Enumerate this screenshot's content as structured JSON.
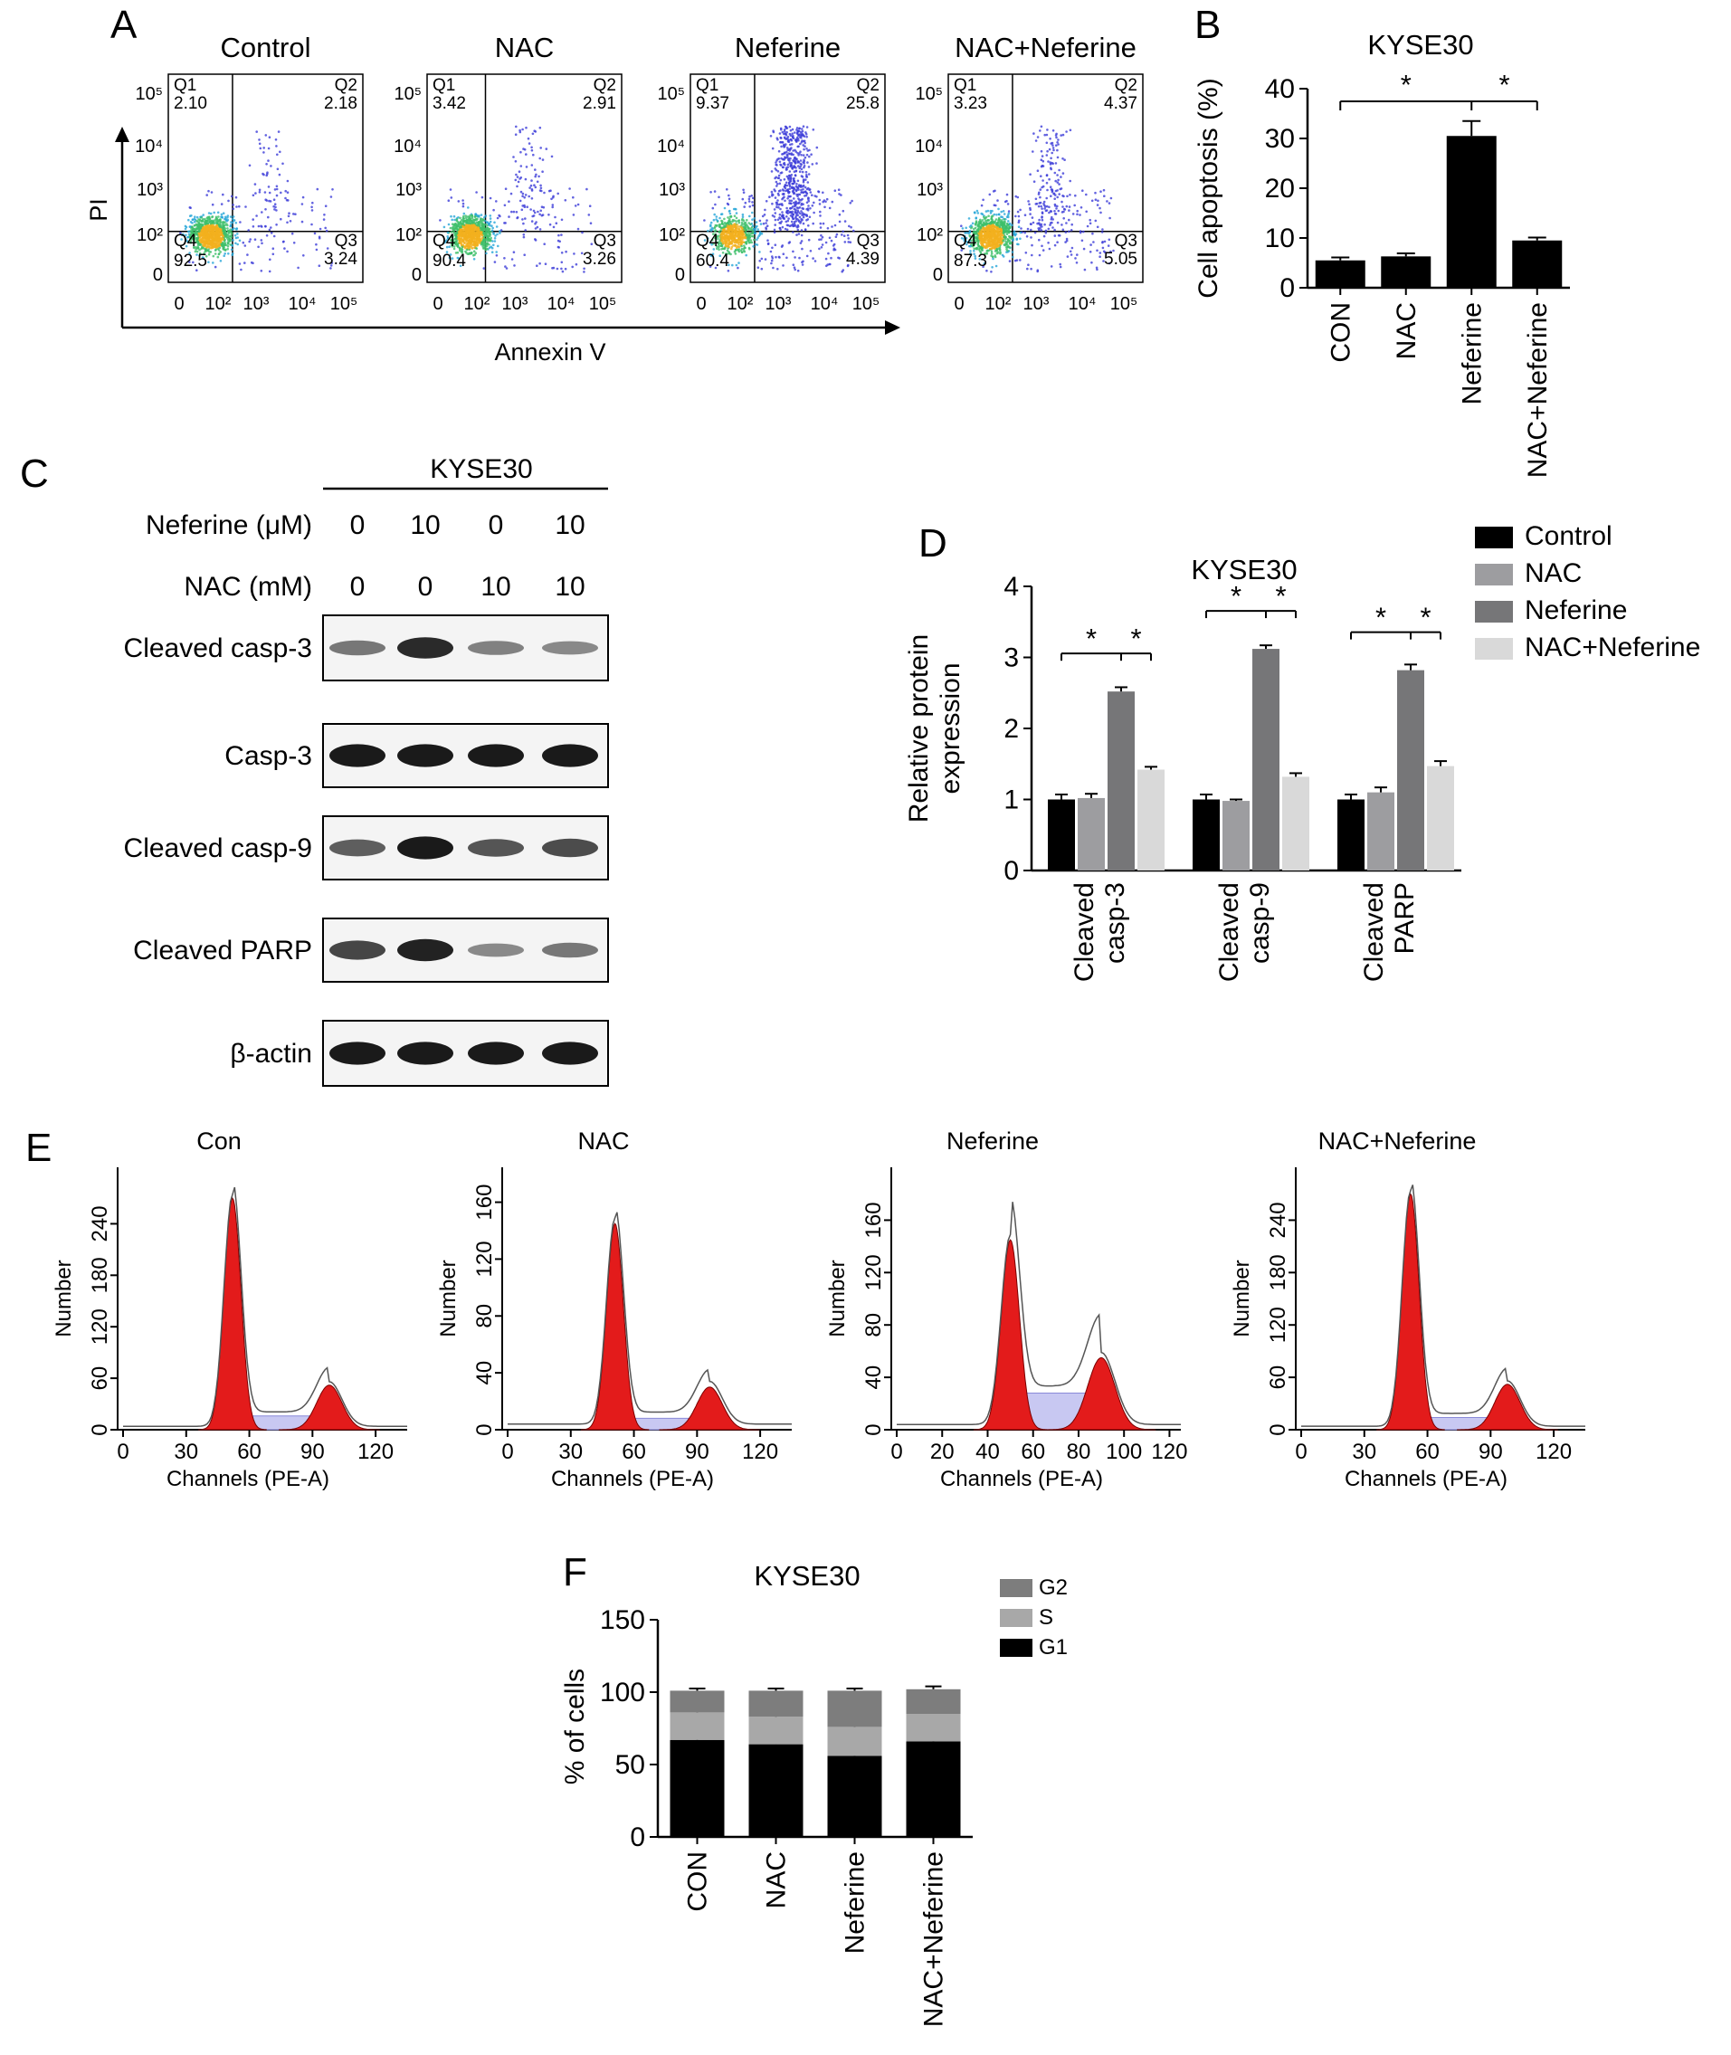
{
  "panels": {
    "A": {
      "letter": "A",
      "ylabel": "PI",
      "xlabel": "Annexin V",
      "ticks_x": [
        "0",
        "10²",
        "10³",
        "10⁴",
        "10⁵"
      ],
      "ticks_y": [
        "10⁵",
        "10⁴",
        "10³",
        "10²",
        "0"
      ],
      "plots": [
        {
          "title": "Control",
          "q1": [
            "Q1",
            "2.10"
          ],
          "q2": [
            "Q2",
            "2.18"
          ],
          "q3": [
            "Q3",
            "3.24"
          ],
          "q4": [
            "Q4",
            "92.5"
          ]
        },
        {
          "title": "NAC",
          "q1": [
            "Q1",
            "3.42"
          ],
          "q2": [
            "Q2",
            "2.91"
          ],
          "q3": [
            "Q3",
            "3.26"
          ],
          "q4": [
            "Q4",
            "90.4"
          ]
        },
        {
          "title": "Neferine",
          "q1": [
            "Q1",
            "9.37"
          ],
          "q2": [
            "Q2",
            "25.8"
          ],
          "q3": [
            "Q3",
            "4.39"
          ],
          "q4": [
            "Q4",
            "60.4"
          ]
        },
        {
          "title": "NAC+Neferine",
          "q1": [
            "Q1",
            "3.23"
          ],
          "q2": [
            "Q2",
            "4.37"
          ],
          "q3": [
            "Q3",
            "5.05"
          ],
          "q4": [
            "Q4",
            "87.3"
          ]
        }
      ]
    },
    "B": {
      "letter": "B",
      "sig": "*"
    },
    "C": {
      "letter": "C",
      "title": "KYSE30",
      "treat_rows": [
        {
          "label": "Neferine (μM)",
          "values": [
            "0",
            "10",
            "0",
            "10"
          ]
        },
        {
          "label": "NAC (mM)",
          "values": [
            "0",
            "0",
            "10",
            "10"
          ]
        }
      ],
      "blots": [
        {
          "label": "Cleaved casp-3",
          "intensity": [
            0.4,
            0.85,
            0.35,
            0.3
          ]
        },
        {
          "label": "Casp-3",
          "intensity": [
            0.95,
            0.95,
            0.95,
            0.95
          ]
        },
        {
          "label": "Cleaved casp-9",
          "intensity": [
            0.55,
            0.95,
            0.6,
            0.65
          ]
        },
        {
          "label": "Cleaved PARP",
          "intensity": [
            0.7,
            0.9,
            0.3,
            0.4
          ]
        },
        {
          "label": "β-actin",
          "intensity": [
            0.95,
            0.95,
            0.95,
            0.95
          ]
        }
      ]
    },
    "D": {
      "letter": "D",
      "sig": "*"
    },
    "E": {
      "letter": "E"
    },
    "F": {
      "letter": "F"
    }
  },
  "chart_data": [
    {
      "id": "B",
      "type": "bar",
      "title": "KYSE30",
      "ylabel": "Cell apoptosis (%)",
      "categories": [
        "CON",
        "NAC",
        "Neferine",
        "NAC+Neferine"
      ],
      "values": [
        5.5,
        6.3,
        30.5,
        9.5
      ],
      "errors": [
        0.6,
        0.6,
        3.0,
        0.6
      ],
      "ylim": [
        0,
        40
      ],
      "yticks": [
        0,
        10,
        20,
        30,
        40
      ],
      "color": "#000000"
    },
    {
      "id": "D",
      "type": "bar",
      "title": "KYSE30",
      "ylabel": "Relative protein expression",
      "categories": [
        "Cleaved casp-3",
        "Cleaved casp-9",
        "Cleaved PARP"
      ],
      "series": [
        {
          "name": "Control",
          "values": [
            1.0,
            1.0,
            1.0
          ],
          "errors": [
            0.07,
            0.07,
            0.07
          ],
          "color": "#000000"
        },
        {
          "name": "NAC",
          "values": [
            1.02,
            0.98,
            1.1
          ],
          "errors": [
            0.06,
            0.02,
            0.07
          ],
          "color": "#9d9da0"
        },
        {
          "name": "Neferine",
          "values": [
            2.52,
            3.12,
            2.82
          ],
          "errors": [
            0.06,
            0.05,
            0.08
          ],
          "color": "#767678"
        },
        {
          "name": "NAC+Neferine",
          "values": [
            1.42,
            1.32,
            1.47
          ],
          "errors": [
            0.04,
            0.05,
            0.07
          ],
          "color": "#d9d9d9"
        }
      ],
      "ylim": [
        0,
        4
      ],
      "yticks": [
        0,
        1,
        2,
        3,
        4
      ],
      "legend": "top-right"
    },
    {
      "id": "E",
      "type": "area",
      "xlabel": "Channels (PE-A)",
      "ylabel": "Number",
      "plots": [
        {
          "title": "Con",
          "xticks": [
            0,
            30,
            60,
            90,
            120
          ],
          "xmax": 135,
          "yticks": [
            0,
            60,
            120,
            180,
            240
          ],
          "ymax": 290,
          "g1_peak": 52,
          "g1_height": 270,
          "g2_peak": 98,
          "g2_height": 52,
          "s_level": 16
        },
        {
          "title": "NAC",
          "xticks": [
            0,
            30,
            60,
            90,
            120
          ],
          "xmax": 135,
          "yticks": [
            0,
            40,
            80,
            120,
            160
          ],
          "ymax": 175,
          "g1_peak": 51,
          "g1_height": 145,
          "g2_peak": 96,
          "g2_height": 30,
          "s_level": 8
        },
        {
          "title": "Neferine",
          "xticks": [
            0,
            20,
            40,
            60,
            80,
            100,
            120
          ],
          "xmax": 125,
          "yticks": [
            0,
            40,
            80,
            120,
            160
          ],
          "ymax": 190,
          "g1_peak": 50,
          "g1_height": 145,
          "g2_peak": 90,
          "g2_height": 55,
          "s_level": 28
        },
        {
          "title": "NAC+Neferine",
          "xticks": [
            0,
            30,
            60,
            90,
            120
          ],
          "xmax": 135,
          "yticks": [
            0,
            60,
            120,
            180,
            240
          ],
          "ymax": 285,
          "g1_peak": 52,
          "g1_height": 270,
          "g2_peak": 98,
          "g2_height": 52,
          "s_level": 14
        }
      ]
    },
    {
      "id": "F",
      "type": "bar",
      "title": "KYSE30",
      "ylabel": "% of cells",
      "categories": [
        "CON",
        "NAC",
        "Neferine",
        "NAC+Neferine"
      ],
      "series": [
        {
          "name": "G1",
          "values": [
            67,
            64,
            56,
            66
          ],
          "errors": [
            3,
            3,
            3,
            3
          ],
          "color": "#000000"
        },
        {
          "name": "S",
          "values": [
            19,
            19,
            20,
            19
          ],
          "errors": [
            2,
            2,
            2,
            2
          ],
          "color": "#a8a8a8"
        },
        {
          "name": "G2",
          "values": [
            15,
            18,
            25,
            17
          ],
          "errors": [
            1.5,
            1.5,
            1.5,
            2
          ],
          "color": "#7d7d7d"
        }
      ],
      "stacked": true,
      "ylim": [
        0,
        150
      ],
      "yticks": [
        0,
        50,
        100,
        150
      ],
      "legend": "top-right"
    }
  ]
}
